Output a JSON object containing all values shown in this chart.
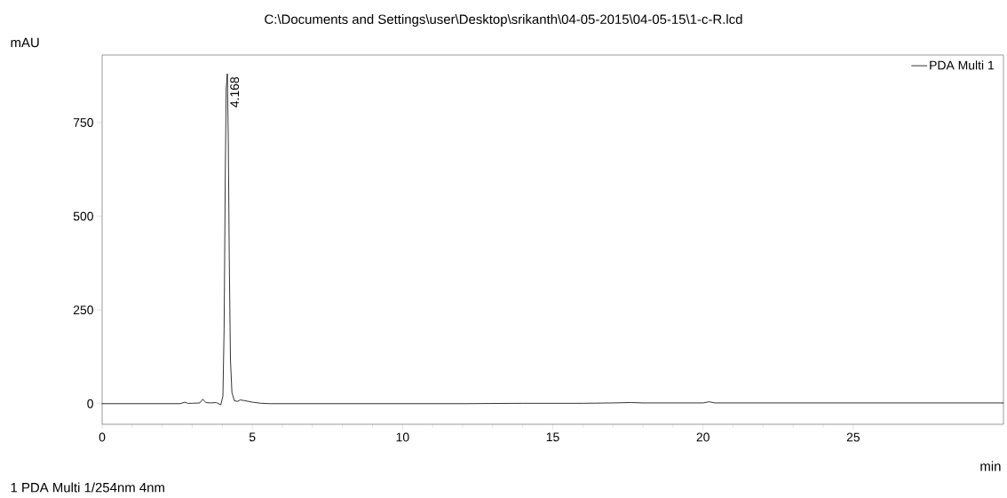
{
  "chart_data": {
    "type": "line",
    "title": "C:\\Documents and Settings\\user\\Desktop\\srikanth\\04-05-2015\\04-05-15\\1-c-R.lcd",
    "xlabel": "min",
    "ylabel": "mAU",
    "xlim": [
      0,
      30
    ],
    "xticks": [
      0,
      5,
      10,
      15,
      20,
      25
    ],
    "ylim": [
      -55,
      930
    ],
    "yticks": [
      0,
      250,
      500,
      750
    ],
    "grid": false,
    "legend": "top right",
    "marker": "none",
    "line_style": "solid",
    "series": [
      {
        "name": "PDA Multi 1",
        "color": "#000000",
        "x": [
          0,
          1,
          2,
          2.6,
          2.75,
          2.85,
          3.0,
          3.25,
          3.35,
          3.45,
          3.6,
          3.8,
          3.95,
          4.02,
          4.06,
          4.1,
          4.13,
          4.168,
          4.2,
          4.23,
          4.27,
          4.32,
          4.4,
          4.5,
          4.6,
          4.75,
          5.0,
          5.3,
          5.6,
          6,
          8,
          10,
          12,
          14,
          16,
          17,
          17.6,
          18,
          20,
          20.2,
          20.4,
          30
        ],
        "values": [
          0,
          0,
          0,
          0,
          4,
          1,
          1,
          2,
          12,
          3,
          2,
          3,
          -3,
          20,
          200,
          620,
          840,
          880,
          700,
          400,
          120,
          30,
          8,
          6,
          10,
          8,
          4,
          1,
          0,
          0,
          0,
          0,
          0,
          1,
          1,
          2,
          3,
          2,
          2,
          5,
          2,
          2
        ]
      }
    ],
    "annotations": [
      {
        "text": "4.168",
        "x": 4.168,
        "y": 880
      },
      "1   PDA Multi 1/254nm 4nm"
    ]
  }
}
